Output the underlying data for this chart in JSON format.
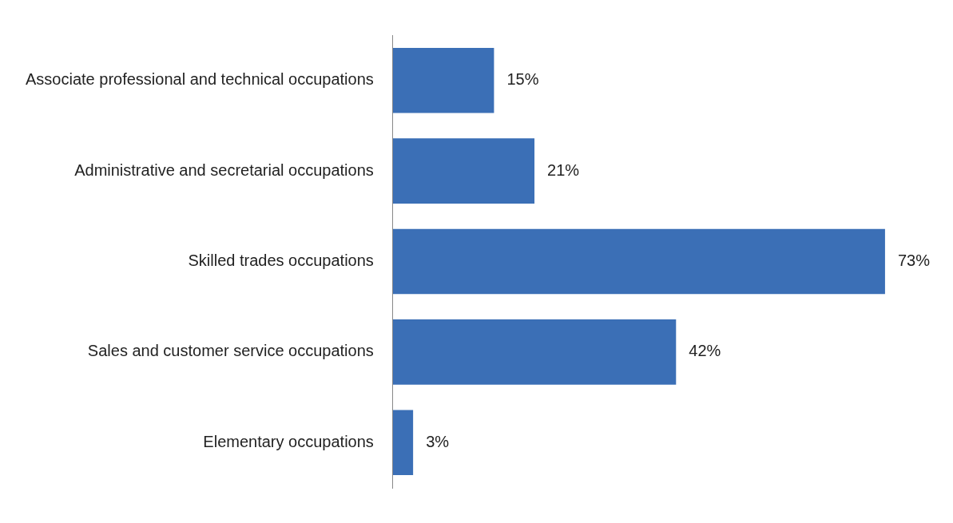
{
  "chart_data": {
    "type": "bar",
    "orientation": "horizontal",
    "categories": [
      "Associate professional and technical occupations",
      "Administrative and secretarial occupations",
      "Skilled trades occupations",
      "Sales and customer service occupations",
      "Elementary occupations"
    ],
    "values": [
      15,
      21,
      73,
      42,
      3
    ],
    "value_labels": [
      "15%",
      "21%",
      "73%",
      "42%",
      "3%"
    ],
    "color": "#3b6fb6",
    "grid": false,
    "legend": false,
    "tick_labels": "y"
  }
}
